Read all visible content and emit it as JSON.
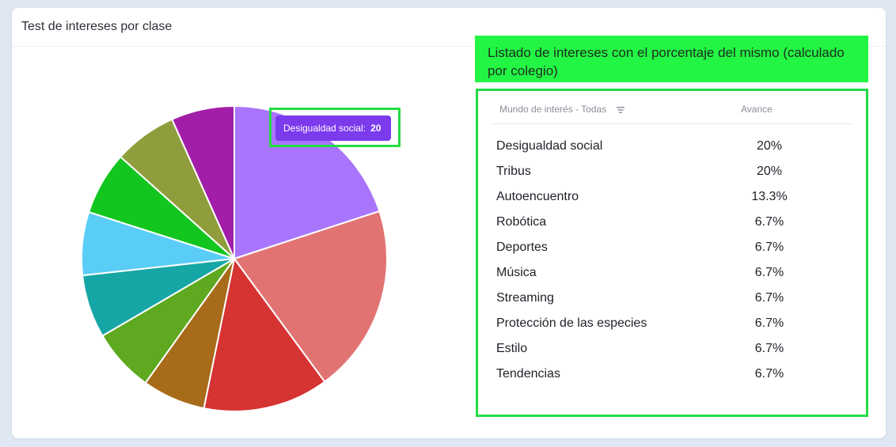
{
  "card": {
    "title": "Test de intereses por clase"
  },
  "tooltip": {
    "label": "Desigualdad social:",
    "value": "20"
  },
  "legend": {
    "text": "Listado de intereses con el porcentaje del mismo (calculado por colegio)"
  },
  "table": {
    "columns": {
      "name": "Mundo de interés - Todas",
      "value": "Avance"
    },
    "rows": [
      {
        "name": "Desigualdad social",
        "value": "20%"
      },
      {
        "name": "Tribus",
        "value": "20%"
      },
      {
        "name": "Autoencuentro",
        "value": "13.3%"
      },
      {
        "name": "Robótica",
        "value": "6.7%"
      },
      {
        "name": "Deportes",
        "value": "6.7%"
      },
      {
        "name": "Música",
        "value": "6.7%"
      },
      {
        "name": "Streaming",
        "value": "6.7%"
      },
      {
        "name": "Protección de las especies",
        "value": "6.7%"
      },
      {
        "name": "Estilo",
        "value": "6.7%"
      },
      {
        "name": "Tendencias",
        "value": "6.7%"
      }
    ]
  },
  "chart_data": {
    "type": "pie",
    "title": "Test de intereses por clase",
    "slices": [
      {
        "value": 20,
        "color": "#a975fc"
      },
      {
        "value": 20,
        "color": "#e27373"
      },
      {
        "value": 13.3,
        "color": "#d63333"
      },
      {
        "value": 6.7,
        "color": "#a86b1a"
      },
      {
        "value": 6.7,
        "color": "#5ea91f"
      },
      {
        "value": 6.7,
        "color": "#17a6a6"
      },
      {
        "value": 6.7,
        "color": "#5acdf7"
      },
      {
        "value": 6.7,
        "color": "#12c51f"
      },
      {
        "value": 6.7,
        "color": "#8f9d3c"
      },
      {
        "value": 6.7,
        "color": "#a21ea8"
      }
    ]
  }
}
